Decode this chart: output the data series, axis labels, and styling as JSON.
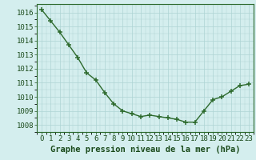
{
  "x": [
    0,
    1,
    2,
    3,
    4,
    5,
    6,
    7,
    8,
    9,
    10,
    11,
    12,
    13,
    14,
    15,
    16,
    17,
    18,
    19,
    20,
    21,
    22,
    23
  ],
  "y": [
    1016.2,
    1015.4,
    1014.6,
    1013.7,
    1012.8,
    1011.7,
    1011.2,
    1010.3,
    1009.5,
    1009.0,
    1008.8,
    1008.6,
    1008.7,
    1008.6,
    1008.5,
    1008.4,
    1008.2,
    1008.2,
    1009.0,
    1009.8,
    1010.0,
    1010.4,
    1010.8,
    1010.9
  ],
  "line_color": "#2d6a2d",
  "marker": "+",
  "bg_color": "#d4eeee",
  "grid_color": "#aed4d4",
  "xlabel": "Graphe pression niveau de la mer (hPa)",
  "xlabel_color": "#1a4a1a",
  "tick_color": "#1a4a1a",
  "ylim": [
    1007.5,
    1016.6
  ],
  "xlim": [
    -0.5,
    23.5
  ],
  "yticks": [
    1008,
    1009,
    1010,
    1011,
    1012,
    1013,
    1014,
    1015,
    1016
  ],
  "xticks": [
    0,
    1,
    2,
    3,
    4,
    5,
    6,
    7,
    8,
    9,
    10,
    11,
    12,
    13,
    14,
    15,
    16,
    17,
    18,
    19,
    20,
    21,
    22,
    23
  ],
  "spine_color": "#2d6a2d",
  "font_size_ticks": 6.5,
  "font_size_xlabel": 7.5,
  "line_width": 1.0,
  "marker_size": 4.5,
  "marker_edge_width": 1.1
}
